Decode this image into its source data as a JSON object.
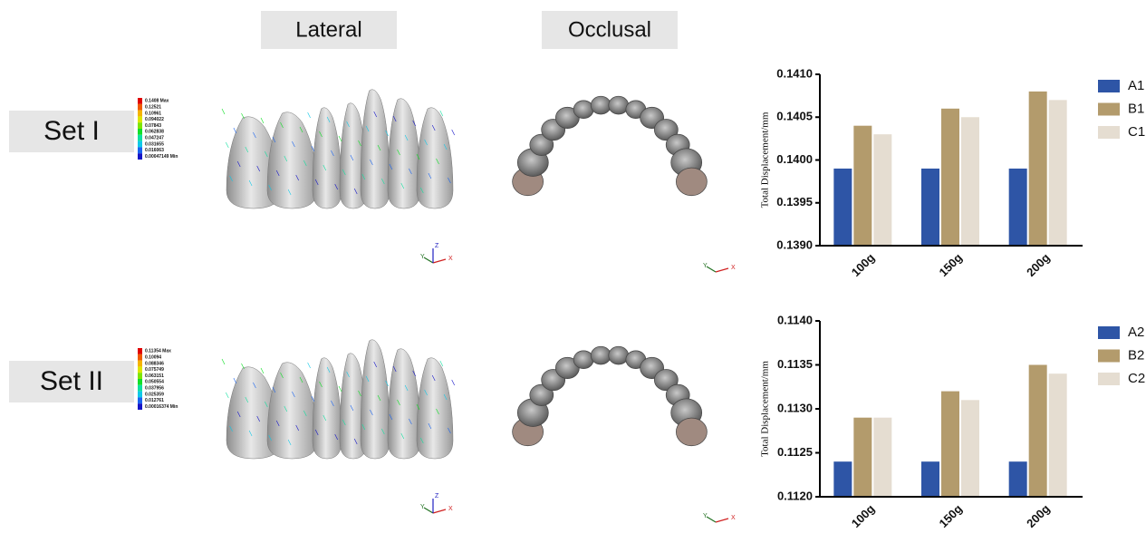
{
  "headers": {
    "lateral": "Lateral",
    "occlusal": "Occlusal"
  },
  "sets": [
    {
      "label": "Set I",
      "scale": [
        "0.1408 Max",
        "0.12521",
        "0.10961",
        "0.094022",
        "0.07843",
        "0.062838",
        "0.047247",
        "0.031655",
        "0.016063",
        "0.00047149 Min"
      ]
    },
    {
      "label": "Set II",
      "scale": [
        "0.11354 Max",
        "0.10094",
        "0.088346",
        "0.075749",
        "0.063151",
        "0.050554",
        "0.037956",
        "0.025359",
        "0.012761",
        "0.00016374 Min"
      ]
    }
  ],
  "triad": {
    "x": "X",
    "y": "Y",
    "z": "Z"
  },
  "chart_data": [
    {
      "type": "bar",
      "ylabel": "Total Displacement/mm",
      "categories": [
        "100g",
        "150g",
        "200g"
      ],
      "series": [
        {
          "name": "A1",
          "color": "#2e55a6",
          "values": [
            0.1399,
            0.1399,
            0.1399
          ]
        },
        {
          "name": "B1",
          "color": "#b39b6c",
          "values": [
            0.1404,
            0.1406,
            0.1408
          ]
        },
        {
          "name": "C1",
          "color": "#e5ddd1",
          "values": [
            0.1403,
            0.1405,
            0.1407
          ]
        }
      ],
      "ylim": [
        0.139,
        0.141
      ],
      "yticks": [
        {
          "value": 0.139,
          "label": "0.1390"
        },
        {
          "value": 0.1395,
          "label": "0.1395"
        },
        {
          "value": 0.14,
          "label": "0.1400"
        },
        {
          "value": 0.1405,
          "label": "0.1405"
        },
        {
          "value": 0.141,
          "label": "0.1410"
        }
      ],
      "legend": "right"
    },
    {
      "type": "bar",
      "ylabel": "Total Displacement/mm",
      "categories": [
        "100g",
        "150g",
        "200g"
      ],
      "series": [
        {
          "name": "A2",
          "color": "#2e55a6",
          "values": [
            0.1124,
            0.1124,
            0.1124
          ]
        },
        {
          "name": "B2",
          "color": "#b39b6c",
          "values": [
            0.1129,
            0.1132,
            0.1135
          ]
        },
        {
          "name": "C2",
          "color": "#e5ddd1",
          "values": [
            0.1129,
            0.1131,
            0.1134
          ]
        }
      ],
      "ylim": [
        0.112,
        0.114
      ],
      "yticks": [
        {
          "value": 0.112,
          "label": "0.1120"
        },
        {
          "value": 0.1125,
          "label": "0.1125"
        },
        {
          "value": 0.113,
          "label": "0.1130"
        },
        {
          "value": 0.1135,
          "label": "0.1135"
        },
        {
          "value": 0.114,
          "label": "0.1140"
        }
      ],
      "legend": "right"
    }
  ]
}
